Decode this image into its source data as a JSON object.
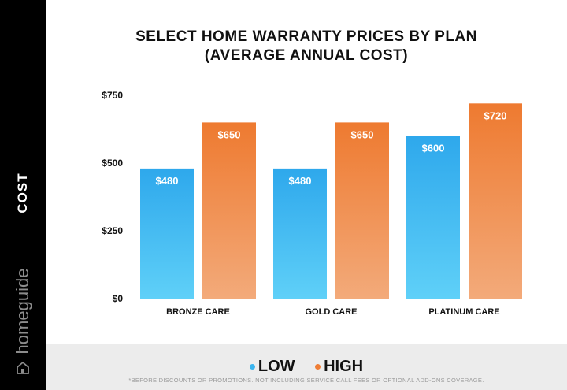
{
  "sidebar": {
    "label": "COST",
    "brand": "homeguide",
    "icon": "house-icon"
  },
  "footnote": "*BEFORE DISCOUNTS OR PROMOTIONS. NOT INCLUDING SERVICE CALL FEES OR OPTIONAL ADD-ONS COVERAGE.",
  "chart_data": {
    "type": "bar",
    "title_line1": "SELECT HOME WARRANTY PRICES BY PLAN",
    "title_line2": "(AVERAGE ANNUAL COST)",
    "categories": [
      "BRONZE CARE",
      "GOLD CARE",
      "PLATINUM CARE"
    ],
    "series": [
      {
        "name": "LOW",
        "values": [
          480,
          480,
          600
        ],
        "labels": [
          "$480",
          "$480",
          "$600"
        ],
        "color": "#3ab4ee"
      },
      {
        "name": "HIGH",
        "values": [
          650,
          650,
          720
        ],
        "labels": [
          "$650",
          "$650",
          "$720"
        ],
        "color": "#ef7d35"
      }
    ],
    "y_ticks": [
      0,
      250,
      500,
      750
    ],
    "y_tick_labels": [
      "$0",
      "$250",
      "$500",
      "$750"
    ],
    "ylim": [
      0,
      750
    ],
    "grid": false,
    "legend_position": "bottom",
    "xlabel": "",
    "ylabel": "COST"
  }
}
